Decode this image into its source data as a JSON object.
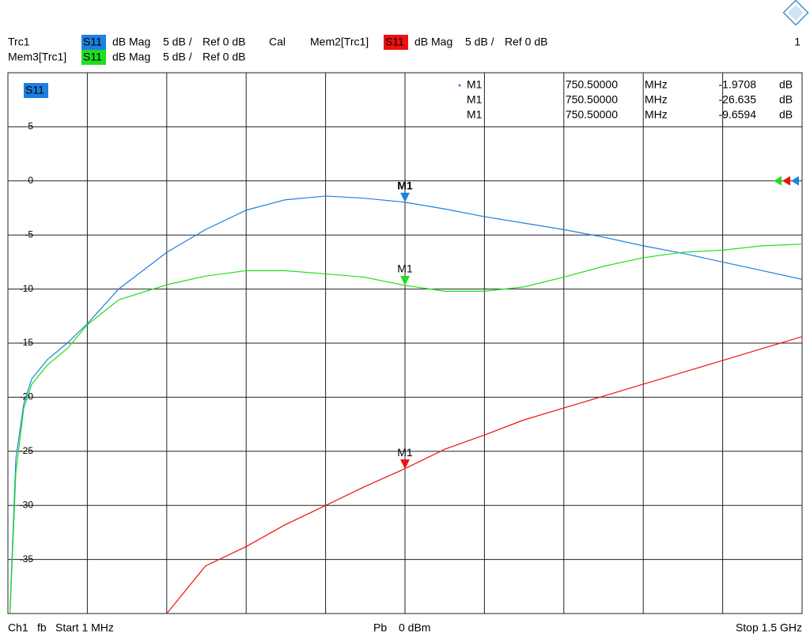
{
  "chart_data": {
    "type": "line",
    "window": "1",
    "active_trace_label": "S11",
    "footer": {
      "channel": "Ch1",
      "mode": "fb",
      "start": "Start 1 MHz",
      "power_label": "Pb",
      "power": "0 dBm",
      "stop": "Stop 1.5 GHz"
    },
    "xlim": [
      1,
      1500
    ],
    "ylim": [
      -40,
      10
    ],
    "yticks": [
      -35,
      -30,
      -25,
      -20,
      -15,
      -10,
      -5,
      0,
      5
    ],
    "grid": true,
    "x": [
      5,
      16,
      31,
      46,
      76,
      113,
      151,
      210,
      301,
      374,
      451,
      524,
      601,
      673,
      750.5,
      826,
      900,
      975,
      1050,
      1125,
      1200,
      1275,
      1350,
      1425,
      1500
    ],
    "series": [
      {
        "name": "Trc1",
        "param": "S11",
        "format": "dB Mag",
        "scale": "5 dB /",
        "ref": "Ref 0 dB",
        "ref_level": 0,
        "cal": "Cal",
        "color": "#1e7fe0",
        "values": [
          -39.6,
          -25.7,
          -20.6,
          -18.3,
          -16.5,
          -15,
          -13.2,
          -10,
          -6.6,
          -4.5,
          -2.7,
          -1.75,
          -1.4,
          -1.6,
          -1.97,
          -2.6,
          -3.3,
          -3.9,
          -4.5,
          -5.2,
          -6,
          -6.7,
          -7.5,
          -8.3,
          -9.1
        ],
        "marker": {
          "name": "M1",
          "x": {
            "value": 750.5,
            "label": "750.50000"
          },
          "x_unit": "MHz",
          "y": -1.9708,
          "y_unit": "dB"
        }
      },
      {
        "name": "Mem2[Trc1]",
        "param": "S11",
        "format": "dB Mag",
        "scale": "5 dB /",
        "ref": "Ref 0 dB",
        "ref_level": 0,
        "color": "#f01010",
        "values": [
          null,
          null,
          null,
          null,
          null,
          null,
          null,
          null,
          -40,
          -35.6,
          -33.8,
          -31.8,
          -30,
          -28.3,
          -26.6,
          -24.8,
          -23.5,
          -22.1,
          -21,
          -19.9,
          -18.8,
          -17.7,
          -16.6,
          -15.5,
          -14.4
        ],
        "marker": {
          "name": "M1",
          "x": {
            "value": 750.5,
            "label": "750.50000"
          },
          "x_unit": "MHz",
          "y": -26.635,
          "y_unit": "dB"
        }
      },
      {
        "name": "Mem3[Trc1]",
        "param": "S11",
        "format": "dB Mag",
        "scale": "5 dB /",
        "ref": "Ref 0 dB",
        "ref_level": 0,
        "color": "#22dd22",
        "values": [
          -40,
          -27,
          -21,
          -18.8,
          -17,
          -15.5,
          -13.3,
          -11,
          -9.6,
          -8.8,
          -8.3,
          -8.3,
          -8.6,
          -8.9,
          -9.66,
          -10.2,
          -10.2,
          -9.8,
          -8.9,
          -7.9,
          -7.1,
          -6.6,
          -6.4,
          -6,
          -5.85
        ],
        "marker": {
          "name": "M1",
          "x": {
            "value": 750.5,
            "label": "750.50000"
          },
          "x_unit": "MHz",
          "y": -9.6594,
          "y_unit": "dB"
        }
      }
    ]
  }
}
